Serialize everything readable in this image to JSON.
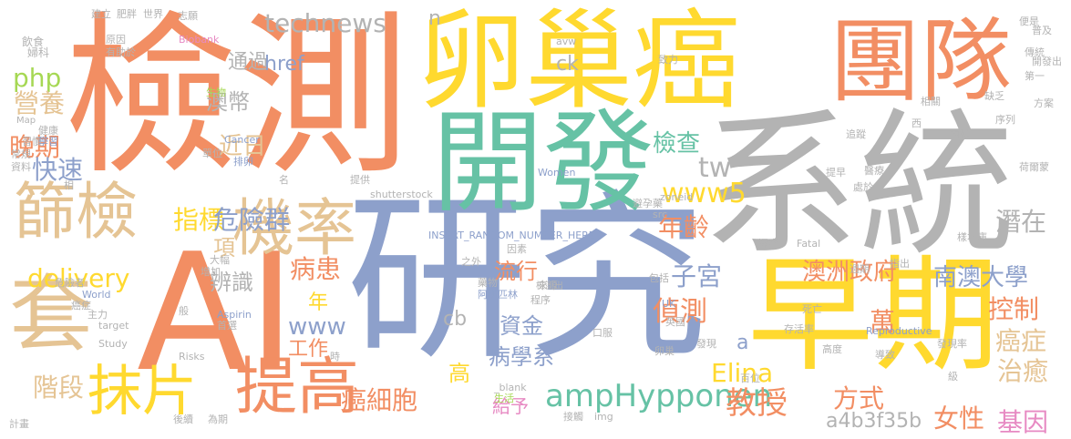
{
  "palette": {
    "orange": "#F28E63",
    "yellow": "#FFD92F",
    "gray": "#B3B3B3",
    "blue": "#8DA0CB",
    "green": "#66C2A5",
    "lime": "#A6D854",
    "tan": "#E5C494",
    "pink": "#E78AC3"
  },
  "words": [
    {
      "text": "檢測",
      "color": "orange"
    },
    {
      "text": "卵巢癌",
      "color": "yellow"
    },
    {
      "text": "團隊",
      "color": "orange"
    },
    {
      "text": "系統",
      "color": "gray"
    },
    {
      "text": "AI",
      "color": "orange"
    },
    {
      "text": "研究",
      "color": "blue"
    },
    {
      "text": "開發",
      "color": "green"
    },
    {
      "text": "早期",
      "color": "yellow"
    },
    {
      "text": "套",
      "color": "tan"
    },
    {
      "text": "篩檢",
      "color": "tan"
    },
    {
      "text": "機率",
      "color": "tan"
    },
    {
      "text": "抹片",
      "color": "yellow"
    },
    {
      "text": "提高",
      "color": "orange"
    },
    {
      "text": "technews",
      "color": "gray"
    },
    {
      "text": "晚期",
      "color": "orange"
    },
    {
      "text": "近日",
      "color": "tan"
    },
    {
      "text": "php",
      "color": "lime"
    },
    {
      "text": "營養",
      "color": "tan"
    },
    {
      "text": "通過",
      "color": "gray"
    },
    {
      "text": "href",
      "color": "blue"
    },
    {
      "text": "澳幣",
      "color": "gray"
    },
    {
      "text": "快速",
      "color": "blue"
    },
    {
      "text": "指標",
      "color": "yellow"
    },
    {
      "text": "危險群",
      "color": "blue"
    },
    {
      "text": "delivery",
      "color": "yellow"
    },
    {
      "text": "項",
      "color": "tan"
    },
    {
      "text": "辨識",
      "color": "gray"
    },
    {
      "text": "病患",
      "color": "orange"
    },
    {
      "text": "年",
      "color": "yellow"
    },
    {
      "text": "www",
      "color": "blue"
    },
    {
      "text": "工作",
      "color": "orange"
    },
    {
      "text": "階段",
      "color": "tan"
    },
    {
      "text": "抹片",
      "color": "yellow"
    },
    {
      "text": "cb",
      "color": "gray"
    },
    {
      "text": "資金",
      "color": "blue"
    },
    {
      "text": "流行",
      "color": "orange"
    },
    {
      "text": "病學系",
      "color": "blue"
    },
    {
      "text": "高",
      "color": "yellow"
    },
    {
      "text": "癌細胞",
      "color": "orange"
    },
    {
      "text": "給予",
      "color": "pink"
    },
    {
      "text": "ampHypponen",
      "color": "green"
    },
    {
      "text": "教授",
      "color": "orange"
    },
    {
      "text": "檢查",
      "color": "green"
    },
    {
      "text": "tw",
      "color": "gray"
    },
    {
      "text": "www5",
      "color": "yellow"
    },
    {
      "text": "年齡",
      "color": "orange"
    },
    {
      "text": "子宮",
      "color": "blue"
    },
    {
      "text": "偵測",
      "color": "orange"
    },
    {
      "text": "Elina",
      "color": "yellow"
    },
    {
      "text": "澳洲政府",
      "color": "orange"
    },
    {
      "text": "方式",
      "color": "orange"
    },
    {
      "text": "萬",
      "color": "orange"
    },
    {
      "text": "a4b3f35b",
      "color": "gray"
    },
    {
      "text": "潛在",
      "color": "gray"
    },
    {
      "text": "南澳大學",
      "color": "blue"
    },
    {
      "text": "控制",
      "color": "orange"
    },
    {
      "text": "癌症",
      "color": "tan"
    },
    {
      "text": "治癒",
      "color": "tan"
    },
    {
      "text": "女性",
      "color": "orange"
    },
    {
      "text": "基因",
      "color": "pink"
    },
    {
      "text": "n",
      "color": "gray"
    },
    {
      "text": "ck",
      "color": "gray"
    },
    {
      "text": "a",
      "color": "blue"
    },
    {
      "text": "飲食",
      "color": "gray"
    },
    {
      "text": "婦科",
      "color": "gray"
    },
    {
      "text": "建立",
      "color": "gray"
    },
    {
      "text": "肥胖",
      "color": "gray"
    },
    {
      "text": "世界",
      "color": "gray"
    },
    {
      "text": "志願",
      "color": "gray"
    },
    {
      "text": "原因",
      "color": "gray"
    },
    {
      "text": "有助於",
      "color": "gray"
    },
    {
      "text": "Biobank",
      "color": "pink"
    },
    {
      "text": "生物",
      "color": "lime"
    },
    {
      "text": "Map",
      "color": "gray"
    },
    {
      "text": "健康",
      "color": "gray"
    },
    {
      "text": "習慣",
      "color": "gray"
    },
    {
      "text": "學習",
      "color": "blue"
    },
    {
      "text": "常規",
      "color": "gray"
    },
    {
      "text": "資料",
      "color": "gray"
    },
    {
      "text": "相",
      "color": "gray"
    },
    {
      "text": "單位",
      "color": "gray"
    },
    {
      "text": "Cancer",
      "color": "blue"
    },
    {
      "text": "排卵",
      "color": "blue"
    },
    {
      "text": "名",
      "color": "gray"
    },
    {
      "text": "提供",
      "color": "gray"
    },
    {
      "text": "shutterstock",
      "color": "gray"
    },
    {
      "text": "Women",
      "color": "blue"
    },
    {
      "text": "zoneid",
      "color": "gray"
    },
    {
      "text": "src",
      "color": "gray"
    },
    {
      "text": "避孕藥",
      "color": "gray"
    },
    {
      "text": "INSERT_RANDOM_NUMBER_HERE",
      "color": "blue"
    },
    {
      "text": "因素",
      "color": "gray"
    },
    {
      "text": "之外",
      "color": "gray"
    },
    {
      "text": "藥物",
      "color": "gray"
    },
    {
      "text": "阿斯匹林",
      "color": "blue"
    },
    {
      "text": "來源",
      "color": "gray"
    },
    {
      "text": "程序",
      "color": "gray"
    },
    {
      "text": "大幅",
      "color": "gray"
    },
    {
      "text": "增加",
      "color": "gray"
    },
    {
      "text": "危險者",
      "color": "gray"
    },
    {
      "text": "World",
      "color": "blue"
    },
    {
      "text": "癌症",
      "color": "gray"
    },
    {
      "text": "主力",
      "color": "gray"
    },
    {
      "text": "target",
      "color": "gray"
    },
    {
      "text": "般",
      "color": "gray"
    },
    {
      "text": "Aspirin",
      "color": "blue"
    },
    {
      "text": "首選",
      "color": "gray"
    },
    {
      "text": "Study",
      "color": "gray"
    },
    {
      "text": "Risks",
      "color": "gray"
    },
    {
      "text": "時",
      "color": "gray"
    },
    {
      "text": "_blank",
      "color": "gray"
    },
    {
      "text": "生活",
      "color": "lime"
    },
    {
      "text": "接觸",
      "color": "gray"
    },
    {
      "text": "img",
      "color": "gray"
    },
    {
      "text": "後續",
      "color": "gray"
    },
    {
      "text": "為期",
      "color": "gray"
    },
    {
      "text": "計畫",
      "color": "gray"
    },
    {
      "text": "包括",
      "color": "gray"
    },
    {
      "text": "UK",
      "color": "blue"
    },
    {
      "text": "英國",
      "color": "gray"
    },
    {
      "text": "口服",
      "color": "gray"
    },
    {
      "text": "卵巢",
      "color": "gray"
    },
    {
      "text": "發現",
      "color": "gray"
    },
    {
      "text": "死亡",
      "color": "gray"
    },
    {
      "text": "存活率",
      "color": "gray"
    },
    {
      "text": "Reproductive",
      "color": "blue"
    },
    {
      "text": "高度",
      "color": "gray"
    },
    {
      "text": "導致",
      "color": "gray"
    },
    {
      "text": "百位",
      "color": "gray"
    },
    {
      "text": "發現率",
      "color": "gray"
    },
    {
      "text": "級",
      "color": "gray"
    },
    {
      "text": "致力",
      "color": "gray"
    },
    {
      "text": "avw",
      "color": "gray"
    },
    {
      "text": "西",
      "color": "gray"
    },
    {
      "text": "相關",
      "color": "gray"
    },
    {
      "text": "追蹤",
      "color": "gray"
    },
    {
      "text": "內膜",
      "color": "gray"
    },
    {
      "text": "提早",
      "color": "gray"
    },
    {
      "text": "醫療",
      "color": "gray"
    },
    {
      "text": "處於",
      "color": "gray"
    },
    {
      "text": "Fatal",
      "color": "gray"
    },
    {
      "text": "深度",
      "color": "gray"
    },
    {
      "text": "指出",
      "color": "gray"
    },
    {
      "text": "週期",
      "color": "gray"
    },
    {
      "text": "樣本庫",
      "color": "gray"
    },
    {
      "text": "缺乏",
      "color": "gray"
    },
    {
      "text": "序列",
      "color": "gray"
    },
    {
      "text": "方案",
      "color": "gray"
    },
    {
      "text": "荷爾蒙",
      "color": "gray"
    },
    {
      "text": "便是",
      "color": "gray"
    },
    {
      "text": "普及",
      "color": "gray"
    },
    {
      "text": "傳統",
      "color": "gray"
    },
    {
      "text": "開發出",
      "color": "gray"
    },
    {
      "text": "第一",
      "color": "gray"
    },
    {
      "text": "檢測出",
      "color": "gray"
    },
    {
      "text": "c",
      "color": "gray"
    }
  ]
}
